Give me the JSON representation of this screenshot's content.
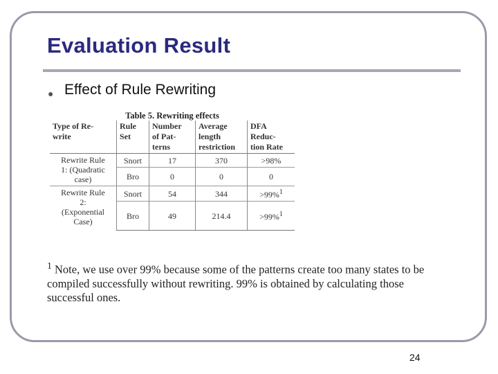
{
  "slide": {
    "title": "Evaluation Result",
    "bullet": "Effect of Rule Rewriting",
    "page_number": "24"
  },
  "table": {
    "caption": "Table 5. Rewriting effects",
    "headers": [
      [
        "Type of Re-",
        "write"
      ],
      [
        "Rule",
        "Set"
      ],
      [
        "Number",
        "of Pat-",
        "terns"
      ],
      [
        "Average",
        "length",
        "restriction"
      ],
      [
        "DFA",
        "Reduc-",
        "tion Rate"
      ]
    ],
    "groups": [
      {
        "rule_lines": [
          "Rewrite Rule",
          "1: (Quadratic",
          "case)"
        ],
        "rows": [
          {
            "rule_set": "Snort",
            "patterns": "17",
            "avg_length": "370",
            "dfa_reduction": ">98%",
            "footnote": ""
          },
          {
            "rule_set": "Bro",
            "patterns": "0",
            "avg_length": "0",
            "dfa_reduction": "0",
            "footnote": ""
          }
        ]
      },
      {
        "rule_lines": [
          "Rewrite Rule",
          "2:",
          "(Exponential",
          "Case)"
        ],
        "rows": [
          {
            "rule_set": "Snort",
            "patterns": "54",
            "avg_length": "344",
            "dfa_reduction": ">99%",
            "footnote": "1"
          },
          {
            "rule_set": "Bro",
            "patterns": "49",
            "avg_length": "214.4",
            "dfa_reduction": ">99%",
            "footnote": "1"
          }
        ]
      }
    ]
  },
  "note": {
    "marker": "1",
    "text": "Note, we use over 99% because some of the patterns create too many states to be compiled successfully without rewriting. 99% is obtained by calculating those successful ones."
  }
}
